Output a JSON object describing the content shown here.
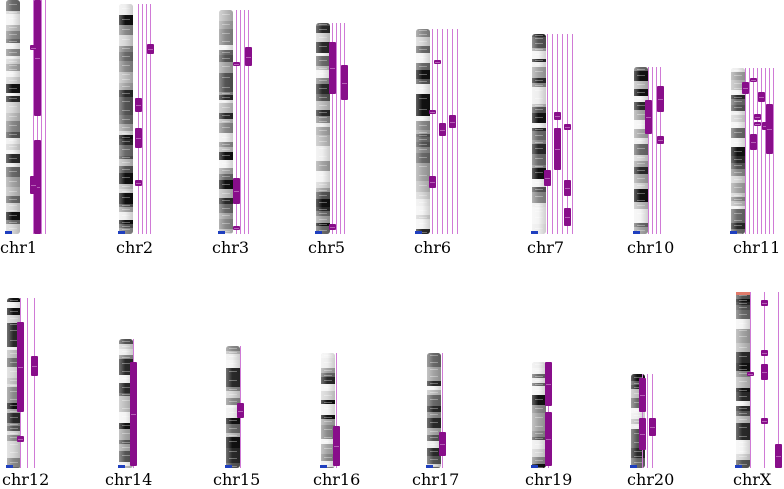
{
  "colors": {
    "feature": "#880e8a",
    "track_line": "#d07ad6",
    "centromere_marker": "#1f3fbf",
    "telomere_accent": "#e07a6a"
  },
  "chromosomes": [
    {
      "label": "chr1",
      "tracks": 4
    },
    {
      "label": "chr2",
      "tracks": 4
    },
    {
      "label": "chr3",
      "tracks": 4
    },
    {
      "label": "chr5",
      "tracks": 4
    },
    {
      "label": "chr6",
      "tracks": 6
    },
    {
      "label": "chr7",
      "tracks": 6
    },
    {
      "label": "chr10",
      "tracks": 4
    },
    {
      "label": "chr11",
      "tracks": 8
    },
    {
      "label": "chr12",
      "tracks": 3
    },
    {
      "label": "chr14",
      "tracks": 1
    },
    {
      "label": "chr15",
      "tracks": 1
    },
    {
      "label": "chr16",
      "tracks": 1
    },
    {
      "label": "chr17",
      "tracks": 1
    },
    {
      "label": "chr19",
      "tracks": 1
    },
    {
      "label": "chr20",
      "tracks": 3
    },
    {
      "label": "chrX",
      "tracks": 3
    }
  ]
}
